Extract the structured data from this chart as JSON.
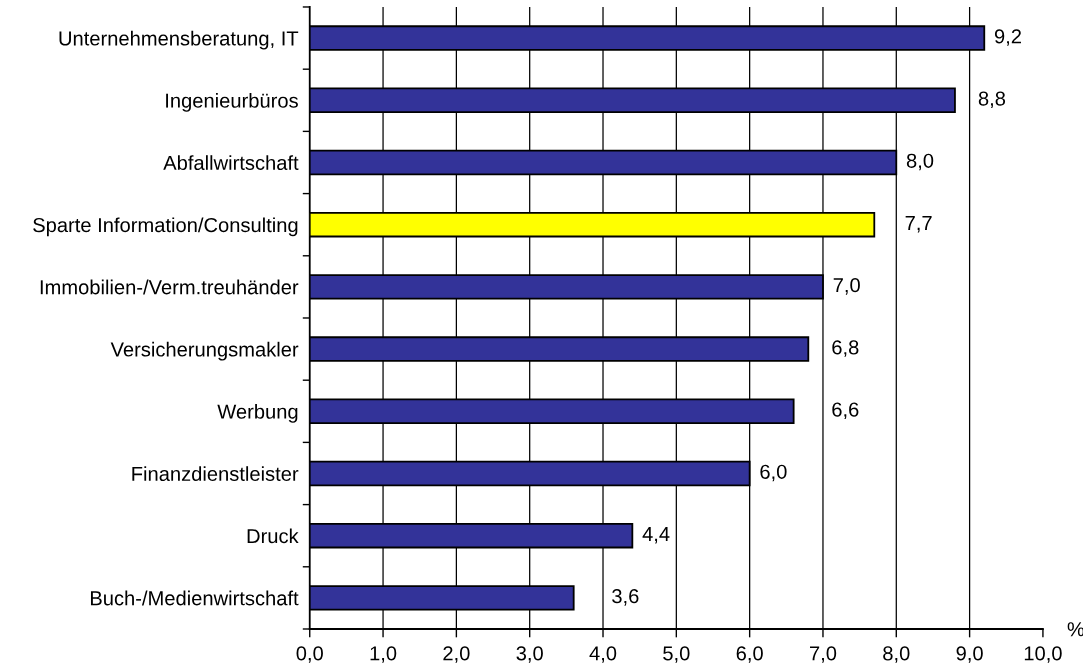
{
  "chart_data": {
    "type": "bar",
    "orientation": "horizontal",
    "categories": [
      "Unternehmensberatung, IT",
      "Ingenieurbüros",
      "Abfallwirtschaft",
      "Sparte Information/Consulting",
      "Immobilien-/Verm.treuhänder",
      "Versicherungsmakler",
      "Werbung",
      "Finanzdienstleister",
      "Druck",
      "Buch-/Medienwirtschaft"
    ],
    "values": [
      9.2,
      8.8,
      8.0,
      7.7,
      7.0,
      6.8,
      6.6,
      6.0,
      4.4,
      3.6
    ],
    "colors": [
      "#333399",
      "#333399",
      "#333399",
      "#ffff00",
      "#333399",
      "#333399",
      "#333399",
      "#333399",
      "#333399",
      "#333399"
    ],
    "value_labels": [
      "9,2",
      "8,8",
      "8,0",
      "7,7",
      "7,0",
      "6,8",
      "6,6",
      "6,0",
      "4,4",
      "3,6"
    ],
    "xlabel": "%",
    "xlim": [
      0,
      10
    ],
    "xticks": [
      {
        "value": 0,
        "label": "0,0"
      },
      {
        "value": 1,
        "label": "1,0"
      },
      {
        "value": 2,
        "label": "2,0"
      },
      {
        "value": 3,
        "label": "3,0"
      },
      {
        "value": 4,
        "label": "4,0"
      },
      {
        "value": 5,
        "label": "5,0"
      },
      {
        "value": 6,
        "label": "6,0"
      },
      {
        "value": 7,
        "label": "7,0"
      },
      {
        "value": 8,
        "label": "8,0"
      },
      {
        "value": 9,
        "label": "9,0"
      },
      {
        "value": 10,
        "label": "10,0"
      }
    ],
    "grid": "x",
    "legend": false
  }
}
